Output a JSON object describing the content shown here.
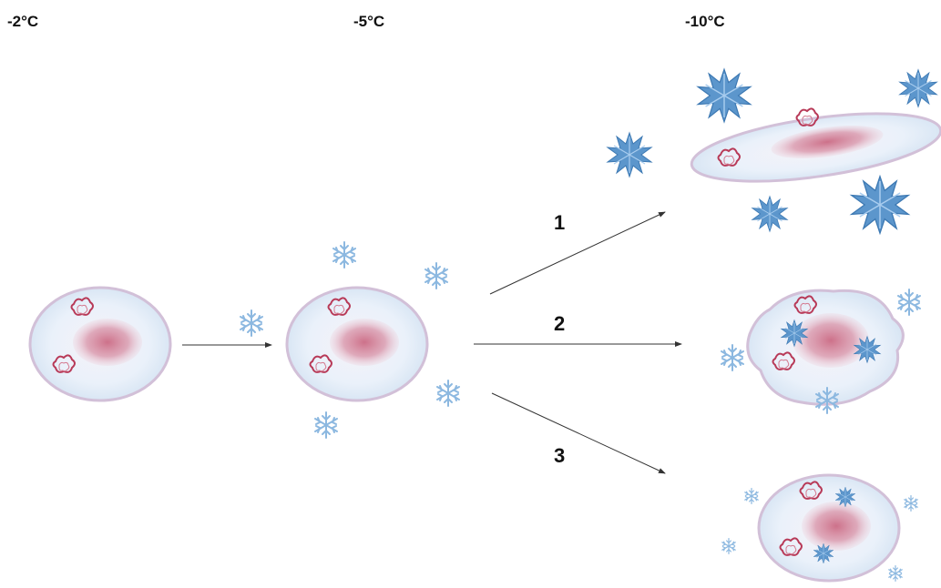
{
  "temperatures": {
    "t1": "-2°C",
    "t2": "-5°C",
    "t3": "-10°C"
  },
  "pathways": {
    "p1": "1",
    "p2": "2",
    "p3": "3"
  },
  "colors": {
    "cell_rim": "#d8c6dc",
    "cell_fill": "#eef4fb",
    "nucleus": "#c06078",
    "organelle": "#b83a58",
    "ice_light": "#8cb8e0",
    "ice_dark": "#4a86c0",
    "arrow": "#333333"
  }
}
